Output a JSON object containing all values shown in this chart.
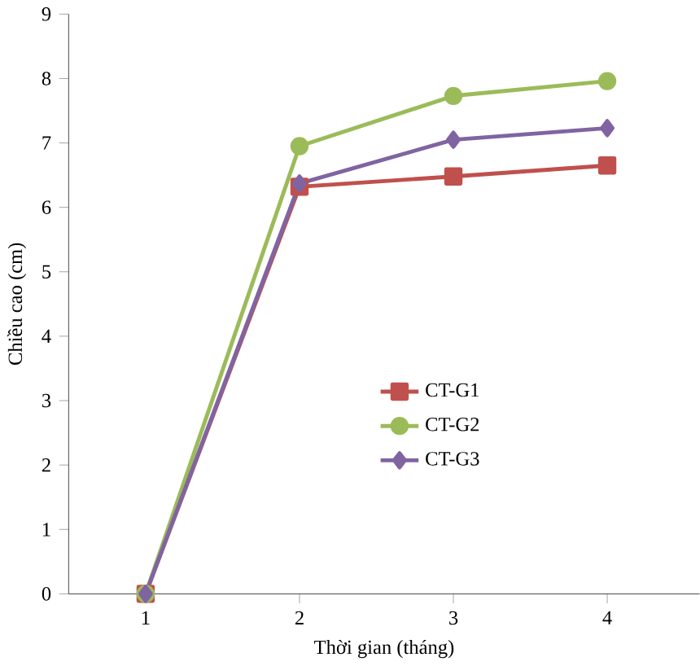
{
  "chart_data": {
    "type": "line",
    "xlabel": "Thời gian (tháng)",
    "ylabel": "Chiều cao (cm)",
    "categories": [
      "1",
      "2",
      "3",
      "4"
    ],
    "ylim": [
      0,
      9
    ],
    "yticks": [
      0,
      1,
      2,
      3,
      4,
      5,
      6,
      7,
      8,
      9
    ],
    "legend": "bottom",
    "grid": false,
    "series": [
      {
        "name": "CT-G1",
        "color": "#c0504d",
        "marker": "square",
        "values": [
          0,
          6.32,
          6.48,
          6.65
        ]
      },
      {
        "name": "CT-G2",
        "color": "#9bbb59",
        "marker": "circle",
        "values": [
          0,
          6.95,
          7.73,
          7.96
        ]
      },
      {
        "name": "CT-G3",
        "color": "#8064a2",
        "marker": "diamond",
        "values": [
          0,
          6.37,
          7.05,
          7.23
        ]
      }
    ]
  }
}
